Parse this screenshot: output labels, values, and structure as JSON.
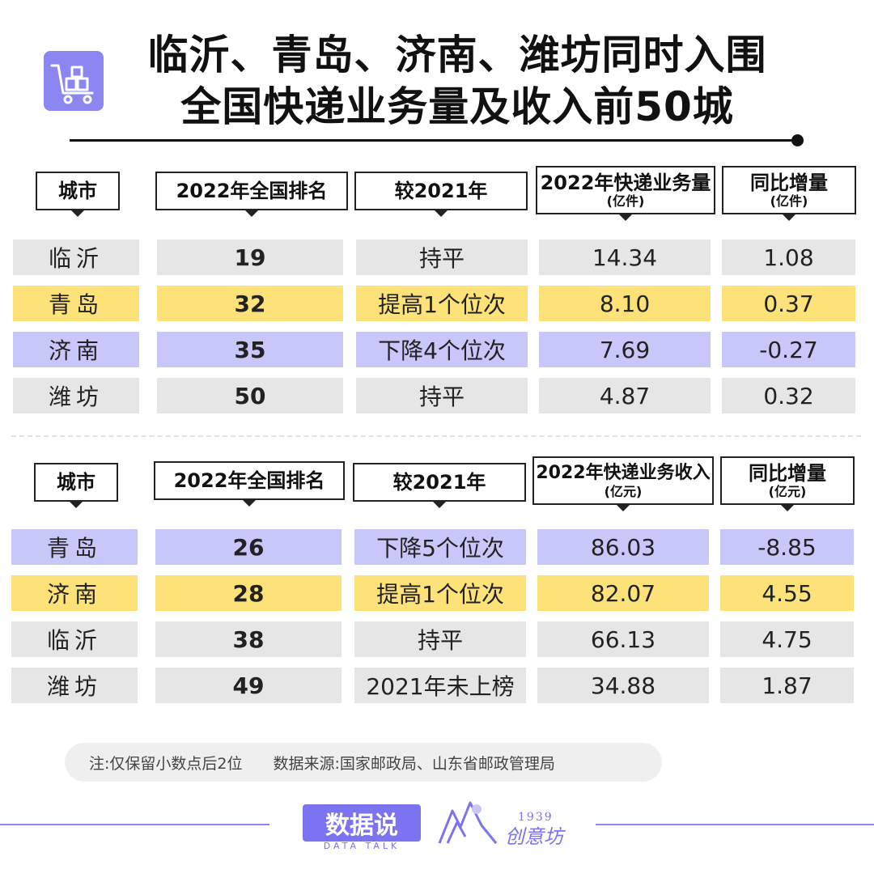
{
  "header": {
    "title_line1": "临沂、青岛、济南、潍坊同时入围",
    "title_line2": "全国快递业务量及收入前50城",
    "logo_icon": "cart-icon",
    "accent": "#8c87f0"
  },
  "table1": {
    "columns": [
      {
        "main": "城市",
        "sub": ""
      },
      {
        "main": "2022年全国排名",
        "sub": ""
      },
      {
        "main": "较2021年",
        "sub": ""
      },
      {
        "main": "2022年快递业务量",
        "sub": "(亿件)"
      },
      {
        "main": "同比增量",
        "sub": "(亿件)"
      }
    ],
    "rows": [
      {
        "city": "临沂",
        "rank": "19",
        "change": "持平",
        "value": "14.34",
        "delta": "1.08",
        "color": "#e6e6e6"
      },
      {
        "city": "青岛",
        "rank": "32",
        "change": "提高1个位次",
        "value": "8.10",
        "delta": "0.37",
        "color": "#fde27a"
      },
      {
        "city": "济南",
        "rank": "35",
        "change": "下降4个位次",
        "value": "7.69",
        "delta": "-0.27",
        "color": "#c8c7fa"
      },
      {
        "city": "潍坊",
        "rank": "50",
        "change": "持平",
        "value": "4.87",
        "delta": "0.32",
        "color": "#e6e6e6"
      }
    ]
  },
  "table2": {
    "columns": [
      {
        "main": "城市",
        "sub": ""
      },
      {
        "main": "2022年全国排名",
        "sub": ""
      },
      {
        "main": "较2021年",
        "sub": ""
      },
      {
        "main": "2022年快递业务收入",
        "sub": "(亿元)"
      },
      {
        "main": "同比增量",
        "sub": "(亿元)"
      }
    ],
    "rows": [
      {
        "city": "青岛",
        "rank": "26",
        "change": "下降5个位次",
        "value": "86.03",
        "delta": "-8.85",
        "color": "#c8c7fa"
      },
      {
        "city": "济南",
        "rank": "28",
        "change": "提高1个位次",
        "value": "82.07",
        "delta": "4.55",
        "color": "#fde27a"
      },
      {
        "city": "临沂",
        "rank": "38",
        "change": "持平",
        "value": "66.13",
        "delta": "4.75",
        "color": "#e6e6e6"
      },
      {
        "city": "潍坊",
        "rank": "49",
        "change": "2021年未上榜",
        "value": "34.88",
        "delta": "1.87",
        "color": "#e6e6e6"
      }
    ]
  },
  "footer": {
    "note": "注:仅保留小数点后2位",
    "source": "数据来源:国家邮政局、山东省邮政管理局",
    "brand1": "数据说",
    "brand1_en": "DATA TALK",
    "brand2_year": "1939",
    "brand2_name": "创意坊",
    "brand2_icon": "mountain-icon"
  }
}
